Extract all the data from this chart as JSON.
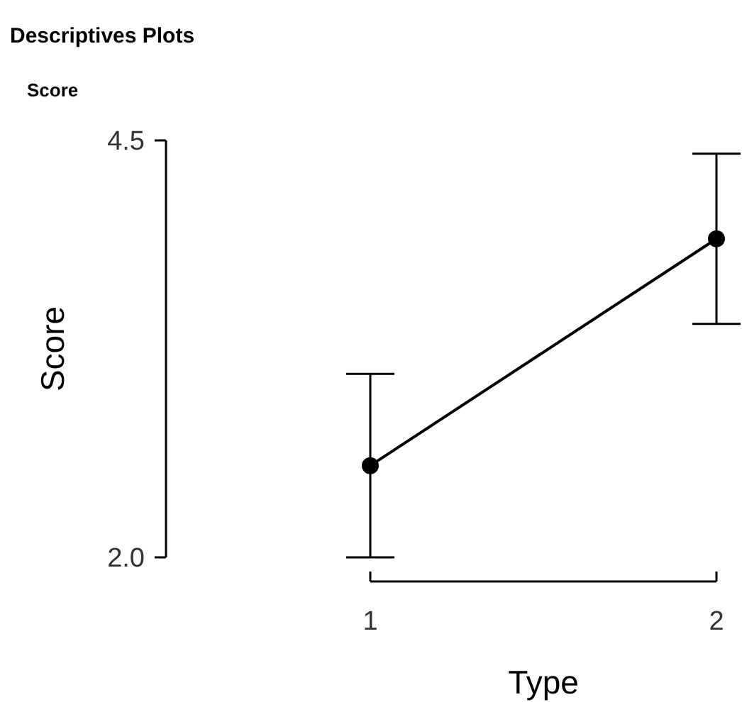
{
  "chart_data": {
    "type": "line",
    "title": "Descriptives Plots",
    "subtitle": "Score",
    "xlabel": "Type",
    "ylabel": "Score",
    "categories": [
      "1",
      "2"
    ],
    "series": [
      {
        "color": "#000000",
        "values": [
          2.55,
          3.91
        ],
        "errors": [
          0.55,
          0.51
        ]
      }
    ],
    "ylim": [
      2.0,
      4.5
    ],
    "yticks": [
      {
        "value": 2,
        "label": "2.0"
      },
      4.5
    ],
    "marker": "circle",
    "line_style": "solid",
    "grid": false
  }
}
